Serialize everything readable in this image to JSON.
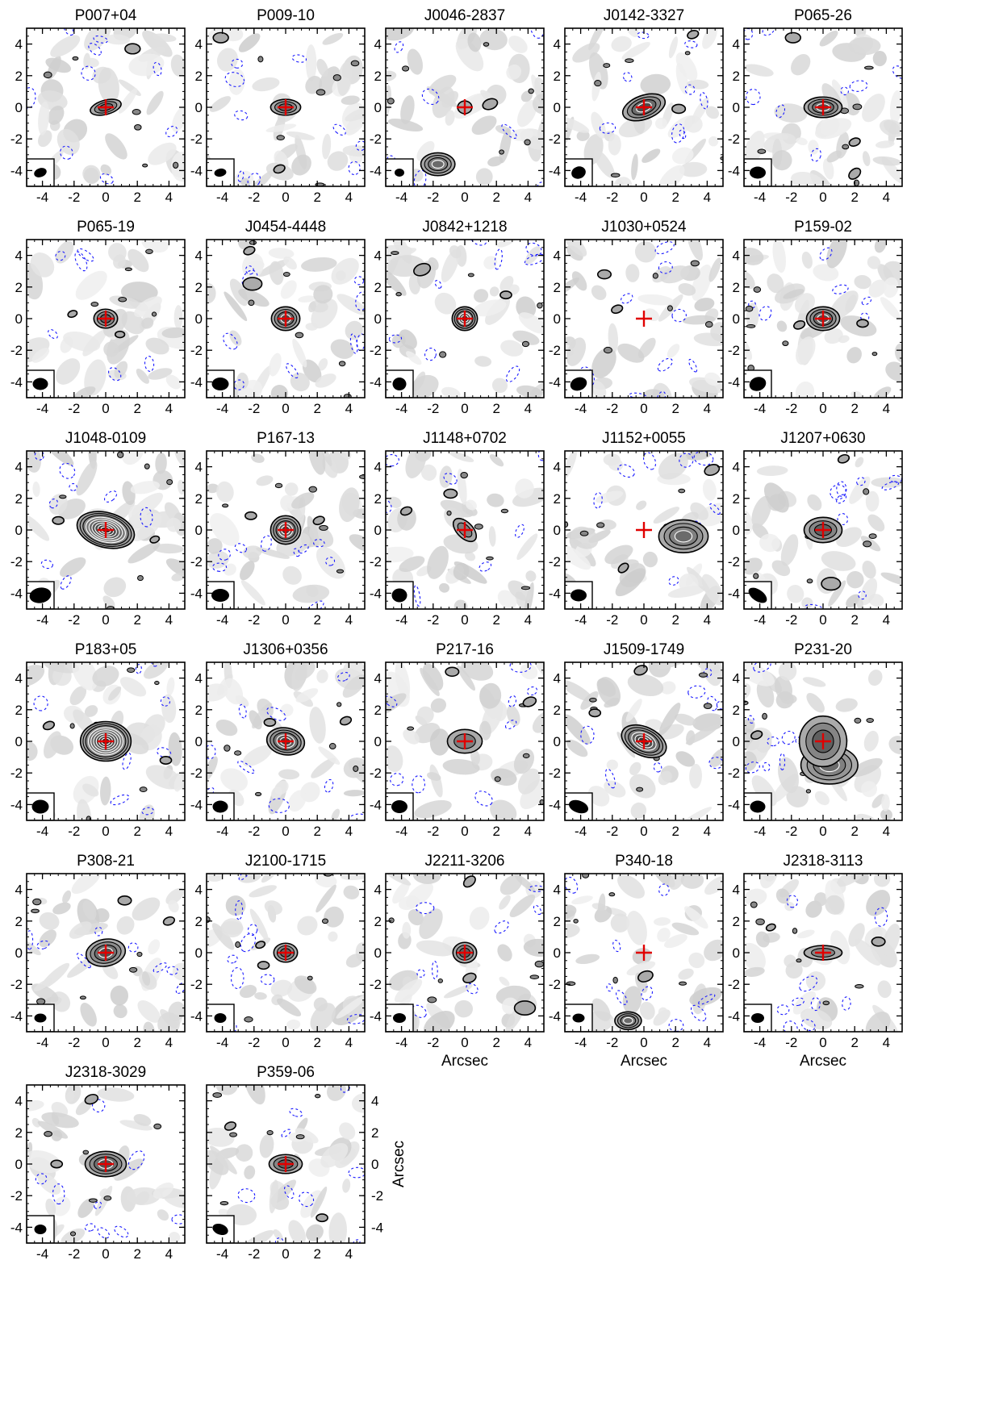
{
  "chart_data": {
    "type": "contour",
    "panel_count": 27,
    "columns": 5,
    "xlim": [
      -5,
      5
    ],
    "ylim": [
      -5,
      5
    ],
    "xticks": [
      -4,
      -2,
      0,
      2,
      4
    ],
    "yticks": [
      -4,
      -2,
      0,
      2,
      4
    ],
    "tick_labels": [
      "-4",
      "-2",
      "0",
      "2",
      "4"
    ],
    "xlabel": "Arcsec",
    "ylabel": "Arcsec",
    "grid": false,
    "colors": {
      "positive_contour": "#000000",
      "negative_contour": "#1a1aff",
      "marker": "#e00000",
      "background": "#d8d8d8"
    },
    "panels": [
      {
        "name": "P007+04",
        "source": [
          0.0,
          0.0
        ],
        "peak": 0.7,
        "levels": 3,
        "size": [
          1.0,
          0.45
        ],
        "angle": 15,
        "beam": [
          0.8,
          0.55,
          20
        ],
        "companions": [
          [
            1.7,
            3.7,
            0.4
          ]
        ]
      },
      {
        "name": "P009-10",
        "source": [
          0.0,
          0.0
        ],
        "peak": 0.7,
        "levels": 3,
        "size": [
          0.95,
          0.5
        ],
        "angle": 0,
        "beam": [
          0.75,
          0.5,
          10
        ],
        "companions": [
          [
            -4.1,
            4.4,
            0.4
          ],
          [
            -0.4,
            -3.9,
            0.3
          ]
        ]
      },
      {
        "name": "J0046-2837",
        "source": [
          0.0,
          0.0
        ],
        "peak": 0.35,
        "levels": 1,
        "size": [
          0.45,
          0.4
        ],
        "angle": 0,
        "beam": [
          0.6,
          0.5,
          0
        ],
        "companions": [
          [
            -1.7,
            -3.6,
            0.9
          ],
          [
            1.6,
            0.2,
            0.4
          ]
        ]
      },
      {
        "name": "J0142-3327",
        "source": [
          0.0,
          0.0
        ],
        "peak": 0.9,
        "levels": 4,
        "size": [
          1.4,
          0.75
        ],
        "angle": 20,
        "beam": [
          0.9,
          0.75,
          20
        ],
        "companions": [
          [
            2.2,
            -0.1,
            0.35
          ],
          [
            3.1,
            4.6,
            0.3
          ]
        ]
      },
      {
        "name": "P065-26",
        "source": [
          0.0,
          0.0
        ],
        "peak": 0.85,
        "levels": 4,
        "size": [
          1.2,
          0.65
        ],
        "angle": 0,
        "beam": [
          1.0,
          0.75,
          0
        ],
        "companions": [
          [
            -1.9,
            4.4,
            0.4
          ],
          [
            2.0,
            -2.2,
            0.3
          ],
          [
            2.0,
            -4.2,
            0.35
          ]
        ]
      },
      {
        "name": "P065-19",
        "source": [
          0.0,
          0.0
        ],
        "peak": 0.8,
        "levels": 3,
        "size": [
          0.75,
          0.6
        ],
        "angle": 0,
        "beam": [
          0.95,
          0.75,
          0
        ],
        "companions": [
          [
            0.9,
            -1.0,
            0.25
          ],
          [
            -2.1,
            0.3,
            0.25
          ]
        ]
      },
      {
        "name": "J0454-4448",
        "source": [
          0.0,
          0.0
        ],
        "peak": 0.9,
        "levels": 4,
        "size": [
          0.9,
          0.75
        ],
        "angle": 0,
        "beam": [
          1.05,
          0.8,
          0
        ],
        "companions": [
          [
            -2.1,
            2.2,
            0.5
          ],
          [
            -2.3,
            4.3,
            0.3
          ]
        ]
      },
      {
        "name": "J0842+1218",
        "source": [
          0.0,
          0.0
        ],
        "peak": 1.0,
        "levels": 5,
        "size": [
          0.8,
          0.75
        ],
        "angle": 0,
        "beam": [
          0.85,
          0.8,
          0
        ],
        "companions": [
          [
            2.6,
            1.5,
            0.3
          ],
          [
            -2.7,
            3.1,
            0.45
          ]
        ]
      },
      {
        "name": "J1030+0524",
        "source": [
          0.0,
          0.0
        ],
        "peak": 0.0,
        "levels": 0,
        "size": [
          0.5,
          0.5
        ],
        "angle": 0,
        "beam": [
          1.05,
          0.8,
          20
        ],
        "companions": [
          [
            -2.5,
            2.8,
            0.35
          ],
          [
            -1.7,
            0.6,
            0.3
          ]
        ]
      },
      {
        "name": "P159-02",
        "source": [
          0.0,
          0.0
        ],
        "peak": 0.85,
        "levels": 4,
        "size": [
          1.05,
          0.75
        ],
        "angle": 0,
        "beam": [
          1.05,
          0.85,
          20
        ],
        "companions": [
          [
            2.5,
            -0.3,
            0.3
          ],
          [
            -1.5,
            -0.4,
            0.3
          ]
        ]
      },
      {
        "name": "J1048-0109",
        "source": [
          0.0,
          0.0
        ],
        "peak": 1.0,
        "levels": 9,
        "size": [
          1.85,
          1.1
        ],
        "angle": -15,
        "beam": [
          1.35,
          0.95,
          10
        ],
        "companions": [
          [
            -3.0,
            0.6,
            0.3
          ],
          [
            3.1,
            -0.6,
            0.25
          ]
        ]
      },
      {
        "name": "P167-13",
        "source": [
          0.0,
          0.0
        ],
        "peak": 0.95,
        "levels": 5,
        "size": [
          0.95,
          0.9
        ],
        "angle": 0,
        "beam": [
          1.1,
          0.8,
          0
        ],
        "companions": [
          [
            -2.2,
            0.9,
            0.3
          ],
          [
            2.1,
            0.6,
            0.3
          ]
        ]
      },
      {
        "name": "J1148+0702",
        "source": [
          0.0,
          0.0
        ],
        "peak": 0.6,
        "levels": 2,
        "size": [
          0.9,
          0.5
        ],
        "angle": -45,
        "beam": [
          0.95,
          0.85,
          0
        ],
        "companions": [
          [
            -0.9,
            2.3,
            0.35
          ],
          [
            -3.7,
            1.2,
            0.3
          ]
        ]
      },
      {
        "name": "J1152+0055",
        "source": [
          0.0,
          0.0
        ],
        "peak": 0.0,
        "levels": 0,
        "size": [
          0.5,
          0.5
        ],
        "angle": 0,
        "beam": [
          1.0,
          0.75,
          0
        ],
        "companions": [
          [
            2.5,
            -0.4,
            1.3
          ],
          [
            4.3,
            3.8,
            0.4
          ],
          [
            -1.3,
            -2.4,
            0.3
          ]
        ]
      },
      {
        "name": "J1207+0630",
        "source": [
          0.0,
          0.0
        ],
        "peak": 0.8,
        "levels": 3,
        "size": [
          1.2,
          0.8
        ],
        "angle": 0,
        "beam": [
          1.3,
          0.7,
          -35
        ],
        "companions": [
          [
            0.5,
            -3.4,
            0.5
          ],
          [
            1.3,
            4.5,
            0.3
          ]
        ]
      },
      {
        "name": "P183+05",
        "source": [
          0.0,
          0.0
        ],
        "peak": 1.0,
        "levels": 9,
        "size": [
          1.6,
          1.25
        ],
        "angle": 0,
        "beam": [
          1.05,
          0.85,
          0
        ],
        "companions": [
          [
            3.8,
            -1.2,
            0.3
          ],
          [
            -3.6,
            1.0,
            0.3
          ]
        ]
      },
      {
        "name": "J1306+0356",
        "source": [
          0.0,
          0.0
        ],
        "peak": 0.95,
        "levels": 5,
        "size": [
          1.2,
          0.85
        ],
        "angle": -10,
        "beam": [
          0.95,
          0.75,
          0
        ],
        "companions": [
          [
            -1.0,
            1.2,
            0.3
          ],
          [
            3.8,
            1.3,
            0.3
          ]
        ]
      },
      {
        "name": "P217-16",
        "source": [
          0.0,
          0.0
        ],
        "peak": 0.65,
        "levels": 2,
        "size": [
          1.1,
          0.75
        ],
        "angle": 0,
        "beam": [
          1.0,
          0.8,
          0
        ],
        "companions": [
          [
            -0.8,
            4.4,
            0.35
          ],
          [
            4.1,
            2.5,
            0.35
          ]
        ]
      },
      {
        "name": "J1509-1749",
        "source": [
          0.0,
          0.0
        ],
        "peak": 1.0,
        "levels": 6,
        "size": [
          1.5,
          0.9
        ],
        "angle": -25,
        "beam": [
          1.25,
          0.75,
          -20
        ],
        "companions": [
          [
            -3.1,
            1.8,
            0.3
          ],
          [
            -0.2,
            4.5,
            0.35
          ]
        ]
      },
      {
        "name": "P231-20",
        "source": [
          0.0,
          0.0
        ],
        "peak": 0.8,
        "levels": 3,
        "size": [
          1.5,
          1.6
        ],
        "angle": 0,
        "beam": [
          0.95,
          0.75,
          0
        ],
        "companions": [
          [
            0.4,
            -1.5,
            1.5
          ],
          [
            -4.2,
            0.4,
            0.3
          ]
        ]
      },
      {
        "name": "P308-21",
        "source": [
          0.0,
          0.0
        ],
        "peak": 0.85,
        "levels": 4,
        "size": [
          1.25,
          0.85
        ],
        "angle": 10,
        "beam": [
          0.75,
          0.55,
          0
        ],
        "companions": [
          [
            1.2,
            3.3,
            0.35
          ],
          [
            4.0,
            2.0,
            0.3
          ]
        ]
      },
      {
        "name": "J2100-1715",
        "source": [
          0.0,
          0.0
        ],
        "peak": 0.75,
        "levels": 3,
        "size": [
          0.75,
          0.6
        ],
        "angle": 0,
        "beam": [
          0.75,
          0.6,
          0
        ],
        "companions": [
          [
            -1.4,
            -0.8,
            0.3
          ],
          [
            -1.6,
            0.5,
            0.25
          ]
        ]
      },
      {
        "name": "J2211-3206",
        "source": [
          0.0,
          0.0
        ],
        "peak": 0.8,
        "levels": 3,
        "size": [
          0.75,
          0.65
        ],
        "angle": 0,
        "beam": [
          0.8,
          0.6,
          0
        ],
        "companions": [
          [
            3.8,
            -3.5,
            0.55
          ],
          [
            0.3,
            -1.6,
            0.35
          ],
          [
            0.3,
            4.5,
            0.35
          ]
        ]
      },
      {
        "name": "P340-18",
        "source": [
          0.0,
          0.0
        ],
        "peak": 0.0,
        "levels": 0,
        "size": [
          0.5,
          0.5
        ],
        "angle": 0,
        "beam": [
          0.75,
          0.55,
          0
        ],
        "companions": [
          [
            -1.0,
            -4.3,
            0.7
          ],
          [
            0.1,
            -1.5,
            0.4
          ]
        ]
      },
      {
        "name": "J2318-3113",
        "source": [
          0.0,
          0.0
        ],
        "peak": 0.55,
        "levels": 2,
        "size": [
          1.2,
          0.45
        ],
        "angle": 0,
        "beam": [
          0.8,
          0.6,
          0
        ],
        "companions": [
          [
            3.5,
            0.7,
            0.35
          ],
          [
            -3.3,
            1.6,
            0.25
          ]
        ]
      },
      {
        "name": "J2318-3029",
        "source": [
          0.0,
          0.0
        ],
        "peak": 0.85,
        "levels": 4,
        "size": [
          1.3,
          0.8
        ],
        "angle": 0,
        "beam": [
          0.75,
          0.6,
          0
        ],
        "companions": [
          [
            -3.1,
            0.0,
            0.3
          ],
          [
            -0.9,
            4.1,
            0.35
          ]
        ]
      },
      {
        "name": "P359-06",
        "source": [
          0.0,
          0.0
        ],
        "peak": 0.8,
        "levels": 3,
        "size": [
          1.05,
          0.6
        ],
        "angle": 0,
        "beam": [
          1.0,
          0.65,
          -20
        ],
        "companions": [
          [
            2.3,
            -3.4,
            0.3
          ],
          [
            -3.5,
            2.4,
            0.3
          ]
        ]
      }
    ]
  }
}
